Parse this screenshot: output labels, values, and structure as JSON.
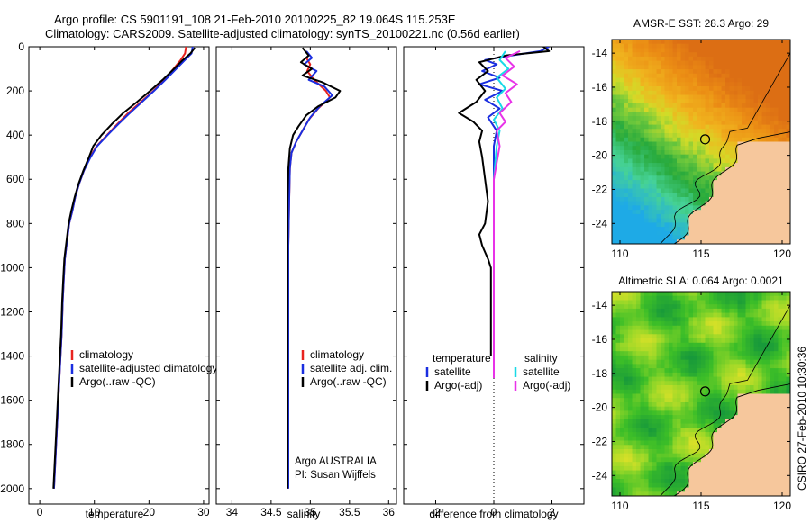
{
  "header": {
    "line1": "Argo profile: CS 5901191_108 21-Feb-2010 20100225_82 19.064S 115.253E",
    "line2": "Climatology: CARS2009. Satellite-adjusted climatology: synTS_20100221.nc (0.56d earlier)"
  },
  "footer_text": "CSIRO 27-Feb-2010 10:30:36",
  "colors": {
    "climatology": "#e8231f",
    "satellite": "#1a2ee0",
    "argo": "#000000",
    "satellite_diff": "#19d9e6",
    "argo_adj_diff": "#e833e8",
    "land": "#f6c79c"
  },
  "chart_data": [
    {
      "type": "line",
      "id": "temperature",
      "xlabel": "temperature",
      "ylabel": "",
      "xlim": [
        -2,
        31
      ],
      "ylim": [
        2070,
        0
      ],
      "xticks": [
        0,
        10,
        20,
        30
      ],
      "yticks": [
        0,
        200,
        400,
        600,
        800,
        1000,
        1200,
        1400,
        1600,
        1800,
        2000
      ],
      "legend": [
        "climatology",
        "satellite-adjusted climatology",
        "Argo(..raw -QC)"
      ],
      "series": [
        {
          "name": "climatology",
          "color": "#e8231f",
          "points": [
            [
              26.8,
              0
            ],
            [
              26.6,
              30
            ],
            [
              25.8,
              60
            ],
            [
              24.5,
              100
            ],
            [
              22.8,
              150
            ],
            [
              20.8,
              200
            ],
            [
              18.5,
              250
            ],
            [
              16.2,
              300
            ],
            [
              14.2,
              350
            ],
            [
              12.3,
              400
            ],
            [
              10.4,
              450
            ],
            [
              9.2,
              500
            ],
            [
              8.1,
              560
            ],
            [
              7.2,
              620
            ],
            [
              6.5,
              680
            ],
            [
              6.0,
              740
            ],
            [
              5.4,
              800
            ],
            [
              5.0,
              880
            ],
            [
              4.6,
              960
            ],
            [
              4.4,
              1050
            ],
            [
              4.2,
              1150
            ],
            [
              4.0,
              1300
            ],
            [
              3.7,
              1450
            ],
            [
              3.4,
              1600
            ],
            [
              3.1,
              1750
            ],
            [
              2.8,
              1900
            ],
            [
              2.6,
              2000
            ]
          ]
        },
        {
          "name": "satellite-adjusted climatology",
          "color": "#1a2ee0",
          "points": [
            [
              28.0,
              0
            ],
            [
              27.8,
              30
            ],
            [
              26.6,
              60
            ],
            [
              25.0,
              100
            ],
            [
              23.0,
              150
            ],
            [
              20.9,
              200
            ],
            [
              18.7,
              250
            ],
            [
              16.5,
              300
            ],
            [
              14.4,
              350
            ],
            [
              12.4,
              400
            ],
            [
              10.5,
              450
            ],
            [
              9.3,
              500
            ],
            [
              8.1,
              560
            ],
            [
              7.2,
              620
            ],
            [
              6.5,
              680
            ],
            [
              6.0,
              740
            ],
            [
              5.4,
              800
            ],
            [
              5.0,
              880
            ],
            [
              4.6,
              960
            ],
            [
              4.4,
              1050
            ],
            [
              4.2,
              1150
            ],
            [
              4.0,
              1300
            ],
            [
              3.7,
              1450
            ],
            [
              3.4,
              1600
            ],
            [
              3.1,
              1750
            ],
            [
              2.8,
              1900
            ],
            [
              2.6,
              2000
            ]
          ]
        },
        {
          "name": "Argo(..raw -QC)",
          "color": "#000000",
          "points": [
            [
              28.4,
              5
            ],
            [
              27.6,
              30
            ],
            [
              26.2,
              60
            ],
            [
              24.6,
              100
            ],
            [
              22.5,
              150
            ],
            [
              20.2,
              200
            ],
            [
              17.8,
              250
            ],
            [
              15.3,
              300
            ],
            [
              13.2,
              350
            ],
            [
              11.3,
              400
            ],
            [
              9.8,
              450
            ],
            [
              9.0,
              500
            ],
            [
              8.0,
              560
            ],
            [
              7.1,
              620
            ],
            [
              6.4,
              680
            ],
            [
              5.8,
              740
            ],
            [
              5.3,
              800
            ],
            [
              4.9,
              880
            ],
            [
              4.5,
              960
            ],
            [
              4.3,
              1050
            ],
            [
              4.1,
              1150
            ],
            [
              3.9,
              1300
            ],
            [
              3.6,
              1450
            ],
            [
              3.3,
              1600
            ],
            [
              3.0,
              1750
            ],
            [
              2.7,
              1900
            ],
            [
              2.5,
              2000
            ]
          ]
        }
      ]
    },
    {
      "type": "line",
      "id": "salinity",
      "xlabel": "salinity",
      "ylabel": "",
      "xlim": [
        33.8,
        36.1
      ],
      "ylim": [
        2070,
        0
      ],
      "xticks": [
        34,
        34.5,
        35,
        35.5,
        36
      ],
      "legend": [
        "climatology",
        "satellite adj. clim.",
        "Argo(..raw -QC)"
      ],
      "annotation": [
        "Argo AUSTRALIA",
        "PI: Susan Wijffels"
      ],
      "series": [
        {
          "name": "climatology",
          "color": "#e8231f",
          "points": [
            [
              34.95,
              50
            ],
            [
              35.0,
              80
            ],
            [
              34.96,
              110
            ],
            [
              35.05,
              150
            ],
            [
              35.2,
              200
            ],
            [
              35.25,
              230
            ],
            [
              35.1,
              280
            ],
            [
              34.98,
              330
            ],
            [
              34.9,
              380
            ],
            [
              34.82,
              430
            ],
            [
              34.76,
              480
            ],
            [
              34.74,
              550
            ],
            [
              34.73,
              700
            ],
            [
              34.72,
              900
            ],
            [
              34.72,
              1100
            ],
            [
              34.72,
              1300
            ],
            [
              34.72,
              1500
            ],
            [
              34.72,
              1700
            ],
            [
              34.72,
              1900
            ],
            [
              34.72,
              2000
            ]
          ]
        },
        {
          "name": "satellite adj. clim.",
          "color": "#1a2ee0",
          "points": [
            [
              34.95,
              20
            ],
            [
              35.02,
              50
            ],
            [
              34.92,
              80
            ],
            [
              35.08,
              110
            ],
            [
              34.98,
              150
            ],
            [
              35.18,
              180
            ],
            [
              35.28,
              220
            ],
            [
              35.12,
              270
            ],
            [
              35.0,
              320
            ],
            [
              34.9,
              380
            ],
            [
              34.82,
              430
            ],
            [
              34.76,
              480
            ],
            [
              34.74,
              550
            ],
            [
              34.73,
              700
            ],
            [
              34.72,
              900
            ],
            [
              34.72,
              1100
            ],
            [
              34.72,
              1300
            ],
            [
              34.72,
              1500
            ],
            [
              34.72,
              1700
            ],
            [
              34.72,
              1900
            ],
            [
              34.72,
              2000
            ]
          ]
        },
        {
          "name": "Argo(..raw -QC)",
          "color": "#000000",
          "points": [
            [
              34.9,
              5
            ],
            [
              34.98,
              40
            ],
            [
              34.88,
              70
            ],
            [
              35.02,
              100
            ],
            [
              34.9,
              130
            ],
            [
              35.15,
              160
            ],
            [
              35.38,
              200
            ],
            [
              35.32,
              230
            ],
            [
              35.1,
              270
            ],
            [
              34.95,
              310
            ],
            [
              34.85,
              360
            ],
            [
              34.78,
              400
            ],
            [
              34.74,
              460
            ],
            [
              34.72,
              550
            ],
            [
              34.71,
              700
            ],
            [
              34.71,
              900
            ],
            [
              34.71,
              1100
            ],
            [
              34.71,
              1300
            ],
            [
              34.71,
              1500
            ],
            [
              34.71,
              1700
            ],
            [
              34.71,
              1900
            ],
            [
              34.71,
              2000
            ]
          ]
        }
      ]
    },
    {
      "type": "line",
      "id": "difference",
      "xlabel": "difference from climatology",
      "ylabel": "",
      "xlim": [
        -3.1,
        3.1
      ],
      "ylim": [
        2070,
        0
      ],
      "xticks": [
        -2,
        0,
        2
      ],
      "legend_groups": [
        {
          "title": "temperature",
          "items": [
            "satellite",
            "Argo(-adj)"
          ]
        },
        {
          "title": "salinity",
          "items": [
            "satellite",
            "Argo(-adj)"
          ]
        }
      ],
      "series": [
        {
          "name": "temperature satellite",
          "color": "#1a2ee0",
          "points": [
            [
              1.9,
              0
            ],
            [
              1.6,
              20
            ],
            [
              0.6,
              40
            ],
            [
              -0.3,
              60
            ],
            [
              0.1,
              80
            ],
            [
              -0.4,
              110
            ],
            [
              0.2,
              140
            ],
            [
              -0.5,
              170
            ],
            [
              0.3,
              200
            ],
            [
              -0.3,
              240
            ],
            [
              0.2,
              280
            ],
            [
              -0.2,
              320
            ],
            [
              0.1,
              380
            ],
            [
              0.0,
              450
            ],
            [
              0.0,
              600
            ],
            [
              0.0,
              800
            ],
            [
              0.0,
              1000
            ],
            [
              0.0,
              1200
            ],
            [
              0.0,
              1400
            ]
          ]
        },
        {
          "name": "temperature Argo(-adj)",
          "color": "#000000",
          "points": [
            [
              1.7,
              0
            ],
            [
              1.9,
              20
            ],
            [
              0.4,
              40
            ],
            [
              -0.5,
              70
            ],
            [
              -0.2,
              110
            ],
            [
              -0.6,
              150
            ],
            [
              -0.3,
              200
            ],
            [
              -0.6,
              250
            ],
            [
              -1.2,
              300
            ],
            [
              -0.7,
              340
            ],
            [
              -0.4,
              380
            ],
            [
              -0.5,
              430
            ],
            [
              -0.4,
              500
            ],
            [
              -0.3,
              600
            ],
            [
              -0.2,
              700
            ],
            [
              -0.3,
              800
            ],
            [
              -0.5,
              850
            ],
            [
              -0.4,
              900
            ],
            [
              -0.2,
              960
            ],
            [
              -0.1,
              1000
            ],
            [
              -0.1,
              1100
            ],
            [
              -0.1,
              1200
            ],
            [
              -0.1,
              1300
            ],
            [
              -0.1,
              1400
            ]
          ]
        },
        {
          "name": "salinity satellite",
          "color": "#19d9e6",
          "points": [
            [
              0.4,
              20
            ],
            [
              0.2,
              60
            ],
            [
              0.5,
              100
            ],
            [
              0.1,
              140
            ],
            [
              0.4,
              190
            ],
            [
              0.1,
              230
            ],
            [
              0.3,
              280
            ],
            [
              0.0,
              330
            ],
            [
              0.2,
              380
            ],
            [
              0.1,
              450
            ],
            [
              0.0,
              600
            ],
            [
              0.0,
              800
            ],
            [
              0.0,
              1000
            ],
            [
              0.0,
              1200
            ],
            [
              0.0,
              1400
            ]
          ]
        },
        {
          "name": "salinity Argo(-adj)",
          "color": "#e833e8",
          "points": [
            [
              0.9,
              20
            ],
            [
              0.4,
              50
            ],
            [
              0.7,
              90
            ],
            [
              0.3,
              130
            ],
            [
              0.8,
              170
            ],
            [
              0.4,
              210
            ],
            [
              0.6,
              250
            ],
            [
              0.2,
              300
            ],
            [
              0.4,
              340
            ],
            [
              0.1,
              380
            ],
            [
              0.2,
              450
            ],
            [
              0.0,
              600
            ],
            [
              0.0,
              800
            ],
            [
              0.0,
              1000
            ],
            [
              0.0,
              1200
            ],
            [
              0.0,
              1500
            ]
          ]
        }
      ]
    },
    {
      "type": "heatmap",
      "id": "sst-map",
      "title": "AMSR-E SST: 28.3 Argo: 29",
      "xlim": [
        109.5,
        120.5
      ],
      "ylim": [
        -25.2,
        -13.2
      ],
      "xticks": [
        110,
        115,
        120
      ],
      "yticks": [
        -14,
        -16,
        -18,
        -20,
        -22,
        -24
      ],
      "argo_position": [
        115.25,
        -19.06
      ]
    },
    {
      "type": "heatmap",
      "id": "sla-map",
      "title": "Altimetric SLA: 0.064 Argo: 0.0021",
      "xlim": [
        109.5,
        120.5
      ],
      "ylim": [
        -25.2,
        -13.2
      ],
      "xticks": [
        110,
        115,
        120
      ],
      "yticks": [
        -14,
        -16,
        -18,
        -20,
        -22,
        -24
      ],
      "argo_position": [
        115.25,
        -19.06
      ]
    }
  ]
}
